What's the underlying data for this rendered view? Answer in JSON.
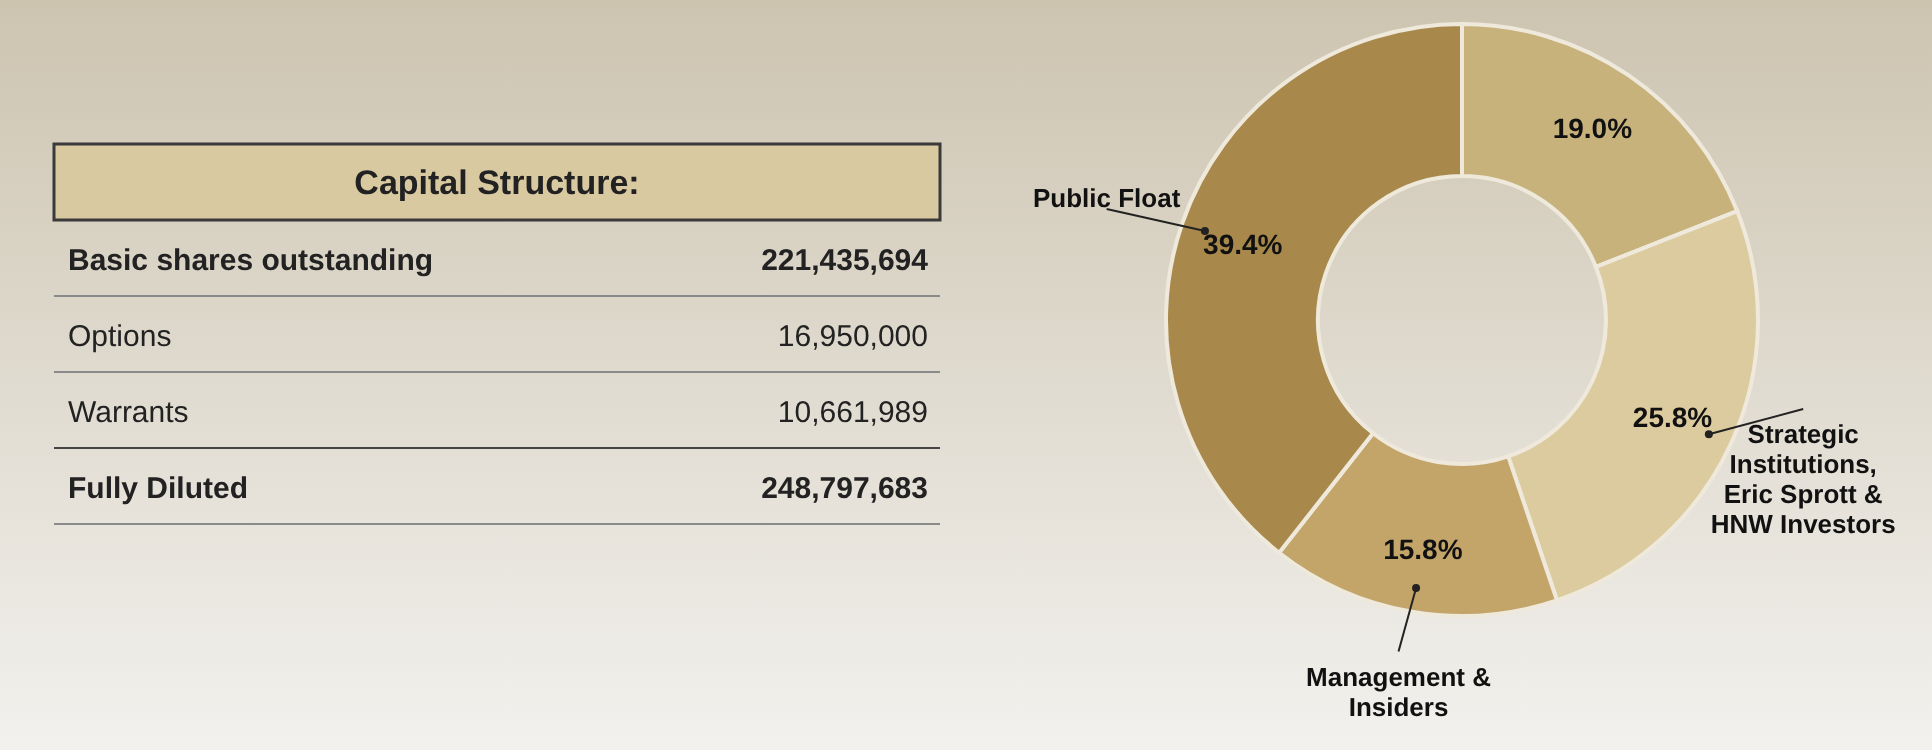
{
  "chart_data": [
    {
      "type": "other",
      "title": "Capital Structure:",
      "categories": [
        "Basic shares outstanding",
        "Options",
        "Warrants",
        "Fully Diluted"
      ],
      "value_labels": [
        "221,435,694",
        "16,950,000",
        "10,661,989",
        "248,797,683"
      ]
    },
    {
      "type": "donut",
      "categories": [
        null,
        "Strategic Institutions, Eric Sprott & HNW Investors",
        "Management & Insiders",
        "Public Float"
      ],
      "values": [
        19.0,
        25.8,
        15.8,
        39.4
      ],
      "colors": [
        "#c8b27c",
        "#dccb9e",
        "#c3a56a",
        "#a8894b"
      ],
      "value_labels": [
        "19.0%",
        "25.8%",
        "15.8%",
        "39.4%"
      ]
    }
  ]
}
